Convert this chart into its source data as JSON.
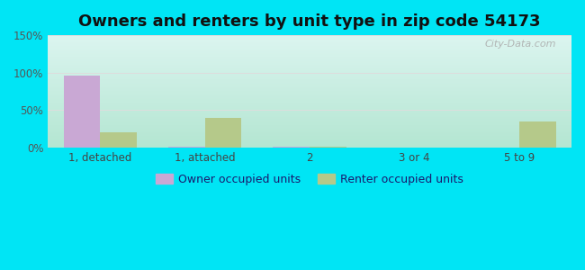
{
  "title": "Owners and renters by unit type in zip code 54173",
  "categories": [
    "1, detached",
    "1, attached",
    "2",
    "3 or 4",
    "5 to 9"
  ],
  "owner_values": [
    96,
    2,
    2,
    0,
    0
  ],
  "renter_values": [
    20,
    40,
    2,
    0,
    35
  ],
  "owner_color": "#c9a8d4",
  "renter_color": "#b5c98a",
  "ylim": [
    0,
    150
  ],
  "yticks": [
    0,
    50,
    100,
    150
  ],
  "ytick_labels": [
    "0%",
    "50%",
    "100%",
    "150%"
  ],
  "bg_outer": "#00e5f5",
  "title_fontsize": 13,
  "watermark": "City-Data.com",
  "bar_width": 0.35,
  "legend_labels": [
    "Owner occupied units",
    "Renter occupied units"
  ],
  "grid_color": "#dddddd",
  "tick_color": "#555555",
  "label_color": "#444444"
}
